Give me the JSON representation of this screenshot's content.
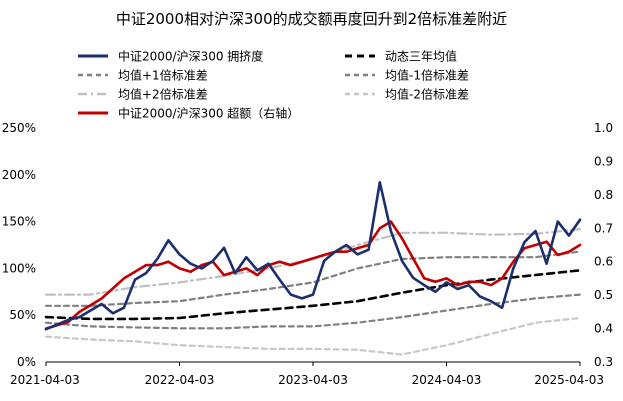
{
  "chart_data": {
    "type": "line",
    "title": "中证2000相对沪深300的成交额再度回升到2倍标准差附近",
    "x_ticks": [
      "2021-04-03",
      "2022-04-03",
      "2023-04-03",
      "2024-04-03",
      "2025-04-03"
    ],
    "x_range": [
      0,
      48
    ],
    "left_axis": {
      "ticks": [
        "0%",
        "50%",
        "100%",
        "150%",
        "200%",
        "250%"
      ],
      "range": [
        0,
        250
      ]
    },
    "right_axis": {
      "ticks": [
        "0.3",
        "0.4",
        "0.5",
        "0.6",
        "0.7",
        "0.8",
        "0.9",
        "1.0"
      ],
      "range": [
        0.3,
        1.0
      ]
    },
    "legend": [
      {
        "label": "中证2000/沪深300 拥挤度",
        "color": "#1a2f6b",
        "style": "solid-thick"
      },
      {
        "label": "动态三年均值",
        "color": "#000000",
        "style": "dashed-thick"
      },
      {
        "label": "均值+1倍标准差",
        "color": "#808080",
        "style": "dashed"
      },
      {
        "label": "均值-1倍标准差",
        "color": "#808080",
        "style": "dashed"
      },
      {
        "label": "均值+2倍标准差",
        "color": "#c0c0c0",
        "style": "dashdot"
      },
      {
        "label": "均值-2倍标准差",
        "color": "#c8c8c8",
        "style": "dashed"
      },
      {
        "label": "中证2000/沪深300 超额（右轴）",
        "color": "#c00000",
        "style": "solid-thick"
      }
    ],
    "series": [
      {
        "name": "中证2000/沪深300 拥挤度",
        "axis": "left",
        "x": [
          0,
          1,
          2,
          3,
          4,
          5,
          6,
          7,
          8,
          9,
          10,
          11,
          12,
          13,
          14,
          15,
          16,
          17,
          18,
          19,
          20,
          21,
          22,
          23,
          24,
          25,
          26,
          27,
          28,
          29,
          30,
          31,
          32,
          33,
          34,
          35,
          36,
          37,
          38,
          39,
          40,
          41,
          42,
          43,
          44,
          45,
          46,
          47,
          48
        ],
        "values": [
          35,
          40,
          45,
          48,
          55,
          62,
          52,
          58,
          88,
          95,
          110,
          130,
          115,
          105,
          100,
          108,
          122,
          95,
          112,
          98,
          105,
          88,
          72,
          68,
          72,
          108,
          118,
          125,
          115,
          120,
          192,
          140,
          108,
          90,
          82,
          75,
          85,
          78,
          82,
          70,
          65,
          58,
          100,
          128,
          140,
          105,
          150,
          135,
          152
        ]
      },
      {
        "name": "动态三年均值",
        "axis": "left",
        "x": [
          0,
          4,
          8,
          12,
          16,
          20,
          24,
          28,
          32,
          36,
          40,
          44,
          48
        ],
        "values": [
          48,
          46,
          46,
          47,
          52,
          56,
          60,
          65,
          74,
          82,
          88,
          93,
          98
        ]
      },
      {
        "name": "均值+1倍标准差",
        "axis": "left",
        "x": [
          0,
          4,
          8,
          12,
          16,
          20,
          24,
          28,
          32,
          36,
          40,
          44,
          48
        ],
        "values": [
          60,
          60,
          63,
          65,
          72,
          78,
          85,
          100,
          110,
          112,
          112,
          112,
          118
        ]
      },
      {
        "name": "均值-1倍标准差",
        "axis": "left",
        "x": [
          0,
          4,
          8,
          12,
          16,
          20,
          24,
          28,
          32,
          36,
          40,
          44,
          48
        ],
        "values": [
          42,
          38,
          37,
          36,
          36,
          38,
          38,
          42,
          48,
          55,
          62,
          68,
          72
        ]
      },
      {
        "name": "均值+2倍标准差",
        "axis": "left",
        "x": [
          0,
          4,
          8,
          12,
          16,
          20,
          24,
          28,
          32,
          36,
          40,
          44,
          48
        ],
        "values": [
          72,
          72,
          80,
          85,
          92,
          100,
          110,
          125,
          138,
          138,
          136,
          137,
          142
        ]
      },
      {
        "name": "均值-2倍标准差",
        "axis": "left",
        "x": [
          0,
          4,
          8,
          12,
          16,
          20,
          24,
          28,
          32,
          36,
          40,
          44,
          48
        ],
        "values": [
          27,
          24,
          22,
          18,
          16,
          14,
          14,
          13,
          8,
          18,
          30,
          42,
          47
        ]
      },
      {
        "name": "中证2000/沪深300 超额（右轴）",
        "axis": "right",
        "x": [
          0,
          1,
          2,
          3,
          4,
          5,
          6,
          7,
          8,
          9,
          10,
          11,
          12,
          13,
          14,
          15,
          16,
          17,
          18,
          19,
          20,
          21,
          22,
          23,
          24,
          25,
          26,
          27,
          28,
          29,
          30,
          31,
          32,
          33,
          34,
          35,
          36,
          37,
          38,
          39,
          40,
          41,
          42,
          43,
          44,
          45,
          46,
          47,
          48
        ],
        "values": [
          0.4,
          0.41,
          0.42,
          0.45,
          0.47,
          0.49,
          0.52,
          0.55,
          0.57,
          0.59,
          0.59,
          0.6,
          0.58,
          0.57,
          0.59,
          0.6,
          0.56,
          0.57,
          0.58,
          0.56,
          0.59,
          0.6,
          0.59,
          0.6,
          0.61,
          0.62,
          0.63,
          0.63,
          0.64,
          0.65,
          0.7,
          0.72,
          0.67,
          0.61,
          0.55,
          0.54,
          0.55,
          0.53,
          0.54,
          0.54,
          0.53,
          0.55,
          0.6,
          0.64,
          0.65,
          0.66,
          0.62,
          0.63,
          0.65
        ]
      }
    ]
  }
}
